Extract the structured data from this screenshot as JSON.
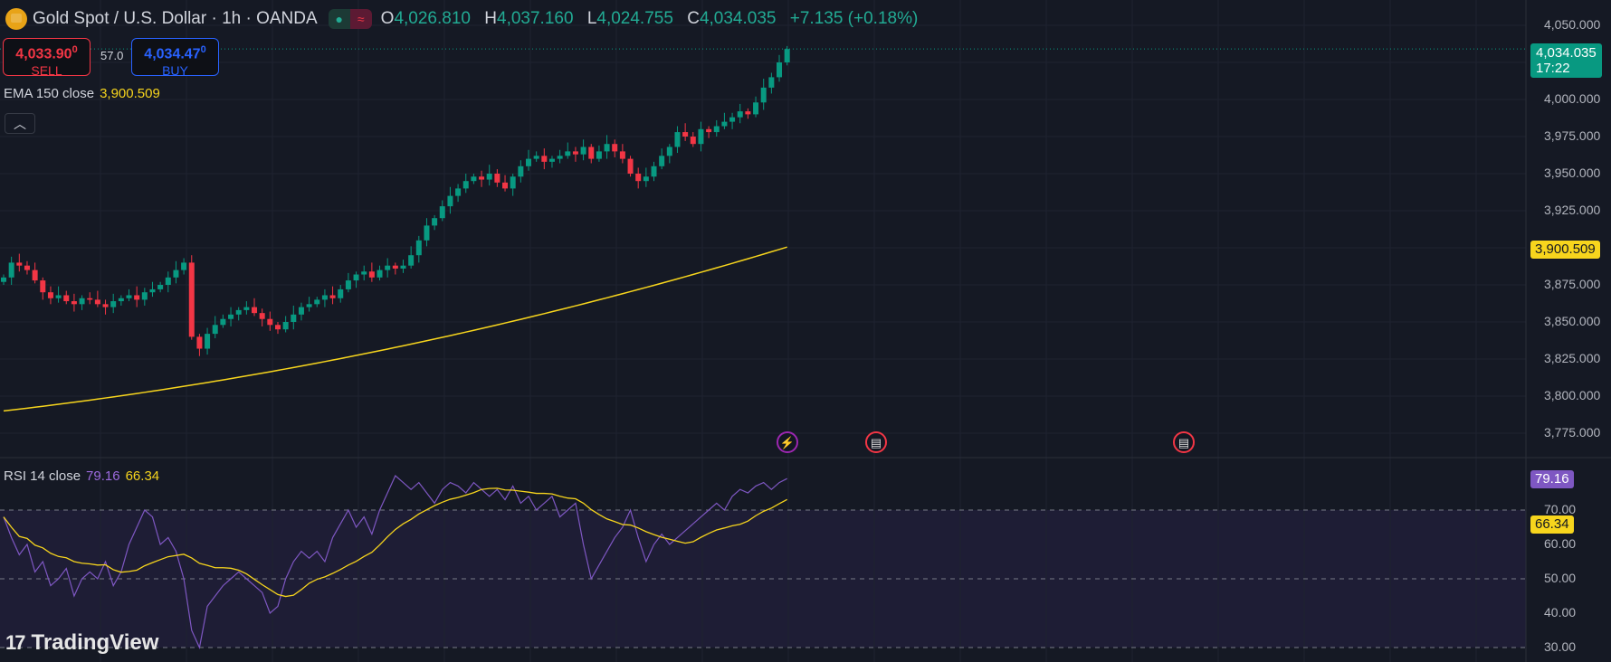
{
  "header": {
    "symbol": "Gold Spot / U.S. Dollar · 1h · OANDA",
    "ohlc": [
      {
        "k": "O",
        "v": "4,026.810"
      },
      {
        "k": "H",
        "v": "4,037.160"
      },
      {
        "k": "L",
        "v": "4,024.755"
      },
      {
        "k": "C",
        "v": "4,034.035"
      }
    ],
    "change": "+7.135 (+0.18%)"
  },
  "trade": {
    "sell_price": "4,033.90",
    "sell_sup": "0",
    "sell_label": "SELL",
    "spread": "57.0",
    "buy_price": "4,034.47",
    "buy_sup": "0",
    "buy_label": "BUY"
  },
  "ema": {
    "label": "EMA 150 close",
    "value": "3,900.509"
  },
  "rsi": {
    "label": "RSI 14 close",
    "value": "79.16",
    "ma_value": "66.34"
  },
  "price_axis": {
    "ticks": [
      "4,050.000",
      "4,000.000",
      "3,975.000",
      "3,950.000",
      "3,925.000",
      "3,875.000",
      "3,850.000",
      "3,825.000",
      "3,800.000",
      "3,775.000"
    ],
    "last_price": "4,034.035",
    "countdown": "17:22",
    "ema_label": "3,900.509"
  },
  "rsi_axis": {
    "ticks": [
      "70.00",
      "60.00",
      "50.00",
      "40.00",
      "30.00"
    ]
  },
  "branding": "TradingView",
  "colors": {
    "up": "#089981",
    "down": "#f23645",
    "ema": "#f7d51d",
    "rsi": "#7e57c2",
    "rsi_ma": "#f7d51d"
  },
  "chart_data": {
    "type": "candlestick",
    "y_range": [
      3760,
      4060
    ],
    "closes": [
      3880,
      3890,
      3888,
      3885,
      3878,
      3870,
      3866,
      3868,
      3864,
      3862,
      3866,
      3865,
      3862,
      3860,
      3864,
      3866,
      3868,
      3865,
      3870,
      3872,
      3875,
      3880,
      3885,
      3890,
      3840,
      3832,
      3842,
      3848,
      3852,
      3855,
      3858,
      3860,
      3856,
      3852,
      3848,
      3845,
      3850,
      3855,
      3860,
      3862,
      3865,
      3868,
      3866,
      3872,
      3878,
      3882,
      3884,
      3880,
      3885,
      3888,
      3886,
      3888,
      3895,
      3905,
      3915,
      3920,
      3928,
      3935,
      3940,
      3945,
      3948,
      3946,
      3950,
      3944,
      3940,
      3948,
      3955,
      3960,
      3962,
      3958,
      3960,
      3962,
      3965,
      3963,
      3968,
      3960,
      3965,
      3970,
      3965,
      3960,
      3950,
      3945,
      3948,
      3955,
      3962,
      3968,
      3978,
      3975,
      3970,
      3980,
      3978,
      3982,
      3985,
      3988,
      3992,
      3990,
      3998,
      4008,
      4015,
      4025,
      4034.035
    ],
    "ema_start": 3790,
    "ema_end": 3900.509,
    "rsi": [
      68,
      62,
      57,
      60,
      52,
      55,
      48,
      50,
      53,
      45,
      50,
      52,
      50,
      55,
      48,
      52,
      60,
      65,
      70,
      68,
      60,
      62,
      58,
      50,
      35,
      30,
      42,
      45,
      48,
      50,
      52,
      50,
      48,
      46,
      40,
      42,
      50,
      55,
      58,
      56,
      58,
      55,
      62,
      66,
      70,
      65,
      68,
      63,
      70,
      75,
      80,
      78,
      76,
      78,
      75,
      72,
      76,
      78,
      77,
      75,
      78,
      76,
      74,
      76,
      73,
      77,
      72,
      74,
      70,
      72,
      74,
      68,
      70,
      72,
      60,
      50,
      54,
      58,
      62,
      65,
      70,
      62,
      55,
      60,
      63,
      60,
      62,
      64,
      66,
      68,
      70,
      72,
      70,
      74,
      76,
      75,
      77,
      78,
      76,
      78,
      79.16
    ],
    "rsi_range": [
      28,
      85
    ],
    "rsi_levels": [
      70,
      50,
      30
    ]
  },
  "events": [
    "lightning-icon",
    "us-flag-icon",
    "us-flag-icon"
  ]
}
